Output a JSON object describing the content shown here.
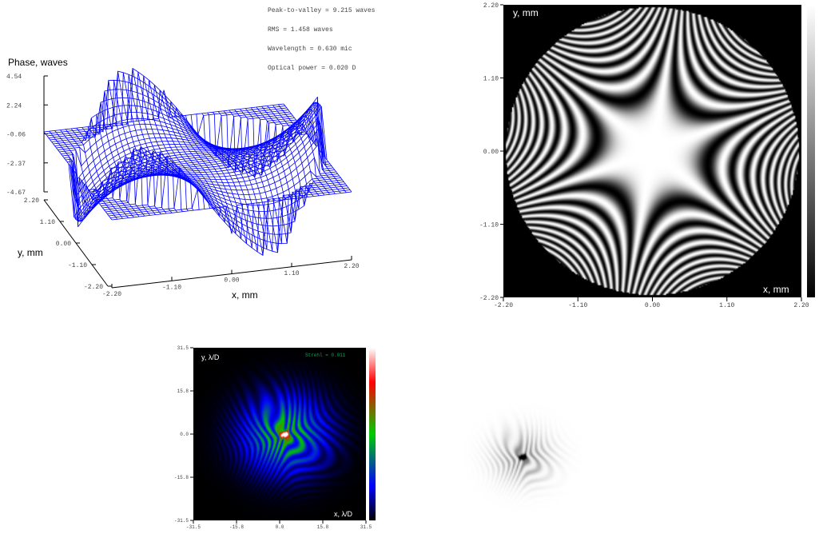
{
  "surface_plot": {
    "info": [
      "Peak-to-valley = 9.215 waves",
      "RMS = 1.458 waves",
      "Wavelength = 0.630 mic",
      "Optical power = 0.020 D"
    ],
    "z_label": "Phase, waves",
    "z_ticks": [
      "4.54",
      "2.24",
      "-0.06",
      "-2.37",
      "-4.67"
    ],
    "y_label": "y, mm",
    "y_ticks": [
      "2.20",
      "1.10",
      "0.00",
      "-1.10",
      "-2.20"
    ],
    "x_label": "x, mm",
    "x_ticks": [
      "-2.20",
      "-1.10",
      "0.00",
      "1.10",
      "2.20"
    ]
  },
  "interferogram": {
    "y_label": "y, mm",
    "x_label": "x, mm",
    "y_ticks": [
      "2.20",
      "1.10",
      "0.00",
      "-1.10",
      "-2.20"
    ],
    "x_ticks": [
      "-2.20",
      "-1.10",
      "0.00",
      "1.10",
      "2.20"
    ]
  },
  "psf": {
    "y_label": "y,  λ/D",
    "x_label": "x,  λ/D",
    "annotation": "Strehl = 0.011",
    "y_ticks": [
      "31.5",
      "15.8",
      "0.0",
      "-15.8",
      "-31.5"
    ],
    "x_ticks": [
      "-31.5",
      "-15.8",
      "0.0",
      "15.8",
      "31.5"
    ]
  }
}
